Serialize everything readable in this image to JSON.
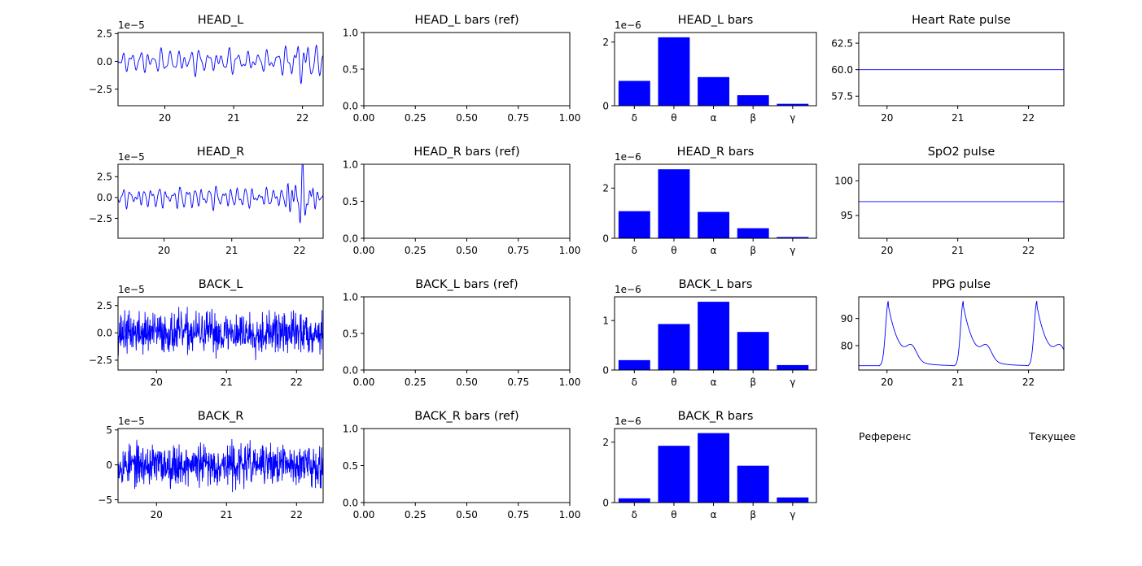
{
  "colors": {
    "series": "#0000ff",
    "bars": "#0000ff",
    "axes": "#000000"
  },
  "notes": {
    "left": "Референс",
    "right": "Текущее"
  },
  "chart_data": [
    {
      "id": "head_l",
      "type": "line",
      "title": "HEAD_L",
      "xlim": [
        19.32,
        22.3
      ],
      "ylim": [
        -4.0,
        2.6
      ],
      "ylabel_exponent": "1e−5",
      "xticks": [
        {
          "v": 20,
          "label": "20"
        },
        {
          "v": 21,
          "label": "21"
        },
        {
          "v": 22,
          "label": "22"
        }
      ],
      "yticks": [
        {
          "v": 2.5,
          "label": "2.5"
        },
        {
          "v": 0,
          "label": "0.0"
        },
        {
          "v": -2.5,
          "label": "−2.5"
        }
      ],
      "signal": {
        "kind": "eeg",
        "seed": 11,
        "t0": 19.32,
        "t1": 22.3,
        "n": 420,
        "base": 0.55,
        "burst_at": 21.7,
        "burst_gain": 2.5
      }
    },
    {
      "id": "head_l_ref",
      "type": "line",
      "title": "HEAD_L bars (ref)",
      "xlim": [
        0,
        1
      ],
      "ylim": [
        0,
        1
      ],
      "xticks": [
        {
          "v": 0,
          "label": "0.00"
        },
        {
          "v": 0.25,
          "label": "0.25"
        },
        {
          "v": 0.5,
          "label": "0.50"
        },
        {
          "v": 0.75,
          "label": "0.75"
        },
        {
          "v": 1,
          "label": "1.00"
        }
      ],
      "yticks": [
        {
          "v": 0,
          "label": "0.0"
        },
        {
          "v": 0.5,
          "label": "0.5"
        },
        {
          "v": 1,
          "label": "1.0"
        }
      ]
    },
    {
      "id": "head_l_bars",
      "type": "bar",
      "title": "HEAD_L bars",
      "categories": [
        "δ",
        "θ",
        "α",
        "β",
        "γ"
      ],
      "values": [
        0.78,
        2.15,
        0.9,
        0.33,
        0.06
      ],
      "xlim": [
        -0.5,
        4.6
      ],
      "ylim": [
        0,
        2.3
      ],
      "ylabel_exponent": "1e−6",
      "yticks": [
        {
          "v": 0,
          "label": "0"
        },
        {
          "v": 2,
          "label": "2"
        }
      ]
    },
    {
      "id": "heart_rate",
      "type": "line",
      "title": "Heart Rate pulse",
      "xlim": [
        19.6,
        22.5
      ],
      "ylim": [
        56.6,
        63.5
      ],
      "xticks": [
        {
          "v": 20,
          "label": "20"
        },
        {
          "v": 21,
          "label": "21"
        },
        {
          "v": 22,
          "label": "22"
        }
      ],
      "yticks": [
        {
          "v": 62.5,
          "label": "62.5"
        },
        {
          "v": 60,
          "label": "60.0"
        },
        {
          "v": 57.5,
          "label": "57.5"
        }
      ],
      "x": [
        19.6,
        22.5
      ],
      "y": [
        60.0,
        60.0
      ]
    },
    {
      "id": "head_r",
      "type": "line",
      "title": "HEAD_R",
      "xlim": [
        19.32,
        22.35
      ],
      "ylim": [
        -4.9,
        4.0
      ],
      "ylabel_exponent": "1e−5",
      "xticks": [
        {
          "v": 20,
          "label": "20"
        },
        {
          "v": 21,
          "label": "21"
        },
        {
          "v": 22,
          "label": "22"
        }
      ],
      "yticks": [
        {
          "v": 2.5,
          "label": "2.5"
        },
        {
          "v": 0,
          "label": "0.0"
        },
        {
          "v": -2.5,
          "label": "−2.5"
        }
      ],
      "signal": {
        "kind": "eeg",
        "seed": 23,
        "t0": 19.32,
        "t1": 22.35,
        "n": 440,
        "base": 0.55,
        "burst_at": 21.75,
        "burst_gain": 4.0
      }
    },
    {
      "id": "head_r_ref",
      "type": "line",
      "title": "HEAD_R bars (ref)",
      "xlim": [
        0,
        1
      ],
      "ylim": [
        0,
        1
      ],
      "xticks": [
        {
          "v": 0,
          "label": "0.00"
        },
        {
          "v": 0.25,
          "label": "0.25"
        },
        {
          "v": 0.5,
          "label": "0.50"
        },
        {
          "v": 0.75,
          "label": "0.75"
        },
        {
          "v": 1,
          "label": "1.00"
        }
      ],
      "yticks": [
        {
          "v": 0,
          "label": "0.0"
        },
        {
          "v": 0.5,
          "label": "0.5"
        },
        {
          "v": 1,
          "label": "1.0"
        }
      ]
    },
    {
      "id": "head_r_bars",
      "type": "bar",
      "title": "HEAD_R bars",
      "categories": [
        "δ",
        "θ",
        "α",
        "β",
        "γ"
      ],
      "values": [
        1.08,
        2.75,
        1.05,
        0.4,
        0.05
      ],
      "xlim": [
        -0.5,
        4.6
      ],
      "ylim": [
        0,
        2.95
      ],
      "ylabel_exponent": "1e−6",
      "yticks": [
        {
          "v": 0,
          "label": "0"
        },
        {
          "v": 2,
          "label": "2"
        }
      ]
    },
    {
      "id": "spo2",
      "type": "line",
      "title": "SpO2 pulse",
      "xlim": [
        19.6,
        22.5
      ],
      "ylim": [
        91.7,
        102.4
      ],
      "xticks": [
        {
          "v": 20,
          "label": "20"
        },
        {
          "v": 21,
          "label": "21"
        },
        {
          "v": 22,
          "label": "22"
        }
      ],
      "yticks": [
        {
          "v": 100,
          "label": "100"
        },
        {
          "v": 95,
          "label": "95"
        }
      ],
      "x": [
        19.6,
        22.5
      ],
      "y": [
        97.0,
        97.0
      ]
    },
    {
      "id": "back_l",
      "type": "line",
      "title": "BACK_L",
      "xlim": [
        19.45,
        22.38
      ],
      "ylim": [
        -3.4,
        3.3
      ],
      "ylabel_exponent": "1e−5",
      "xticks": [
        {
          "v": 20,
          "label": "20"
        },
        {
          "v": 21,
          "label": "21"
        },
        {
          "v": 22,
          "label": "22"
        }
      ],
      "yticks": [
        {
          "v": 2.5,
          "label": "2.5"
        },
        {
          "v": 0,
          "label": "0.0"
        },
        {
          "v": -2.5,
          "label": "−2.5"
        }
      ],
      "signal": {
        "kind": "noise",
        "seed": 37,
        "t0": 19.45,
        "t1": 22.38,
        "n": 700,
        "amp": 1.15,
        "clip": 3.1
      }
    },
    {
      "id": "back_l_ref",
      "type": "line",
      "title": "BACK_L bars (ref)",
      "xlim": [
        0,
        1
      ],
      "ylim": [
        0,
        1
      ],
      "xticks": [
        {
          "v": 0,
          "label": "0.00"
        },
        {
          "v": 0.25,
          "label": "0.25"
        },
        {
          "v": 0.5,
          "label": "0.50"
        },
        {
          "v": 0.75,
          "label": "0.75"
        },
        {
          "v": 1,
          "label": "1.00"
        }
      ],
      "yticks": [
        {
          "v": 0,
          "label": "0.0"
        },
        {
          "v": 0.5,
          "label": "0.5"
        },
        {
          "v": 1,
          "label": "1.0"
        }
      ]
    },
    {
      "id": "back_l_bars",
      "type": "bar",
      "title": "BACK_L bars",
      "categories": [
        "δ",
        "θ",
        "α",
        "β",
        "γ"
      ],
      "values": [
        0.2,
        0.93,
        1.38,
        0.77,
        0.1
      ],
      "xlim": [
        -0.5,
        4.6
      ],
      "ylim": [
        0,
        1.48
      ],
      "ylabel_exponent": "1e−6",
      "yticks": [
        {
          "v": 0,
          "label": "0"
        },
        {
          "v": 1,
          "label": "1"
        }
      ]
    },
    {
      "id": "ppg",
      "type": "line",
      "title": "PPG pulse",
      "xlim": [
        19.6,
        22.5
      ],
      "ylim": [
        71.0,
        98.0
      ],
      "xticks": [
        {
          "v": 20,
          "label": "20"
        },
        {
          "v": 21,
          "label": "21"
        },
        {
          "v": 22,
          "label": "22"
        }
      ],
      "yticks": [
        {
          "v": 90,
          "label": "90"
        },
        {
          "v": 80,
          "label": "80"
        }
      ],
      "signal": {
        "kind": "ppg",
        "t0": 19.6,
        "t1": 22.5,
        "n": 600,
        "beats": [
          20.02,
          21.08,
          22.12
        ],
        "base": 72.6,
        "peak": 96.5,
        "notch": 81.5
      }
    },
    {
      "id": "back_r",
      "type": "line",
      "title": "BACK_R",
      "xlim": [
        19.45,
        22.38
      ],
      "ylim": [
        -5.4,
        5.2
      ],
      "ylabel_exponent": "1e−5",
      "xticks": [
        {
          "v": 20,
          "label": "20"
        },
        {
          "v": 21,
          "label": "21"
        },
        {
          "v": 22,
          "label": "22"
        }
      ],
      "yticks": [
        {
          "v": 5,
          "label": "5"
        },
        {
          "v": 0,
          "label": "0"
        },
        {
          "v": -5,
          "label": "−5"
        }
      ],
      "signal": {
        "kind": "noise",
        "seed": 53,
        "t0": 19.45,
        "t1": 22.38,
        "n": 700,
        "amp": 1.8,
        "clip": 4.9
      }
    },
    {
      "id": "back_r_ref",
      "type": "line",
      "title": "BACK_R bars (ref)",
      "xlim": [
        0,
        1
      ],
      "ylim": [
        0,
        1
      ],
      "xticks": [
        {
          "v": 0,
          "label": "0.00"
        },
        {
          "v": 0.25,
          "label": "0.25"
        },
        {
          "v": 0.5,
          "label": "0.50"
        },
        {
          "v": 0.75,
          "label": "0.75"
        },
        {
          "v": 1,
          "label": "1.00"
        }
      ],
      "yticks": [
        {
          "v": 0,
          "label": "0.0"
        },
        {
          "v": 0.5,
          "label": "0.5"
        },
        {
          "v": 1,
          "label": "1.0"
        }
      ]
    },
    {
      "id": "back_r_bars",
      "type": "bar",
      "title": "BACK_R bars",
      "categories": [
        "δ",
        "θ",
        "α",
        "β",
        "γ"
      ],
      "values": [
        0.14,
        1.88,
        2.3,
        1.22,
        0.17
      ],
      "xlim": [
        -0.5,
        4.6
      ],
      "ylim": [
        0,
        2.45
      ],
      "ylabel_exponent": "1e−6",
      "yticks": [
        {
          "v": 0,
          "label": "0"
        },
        {
          "v": 2,
          "label": "2"
        }
      ]
    }
  ]
}
